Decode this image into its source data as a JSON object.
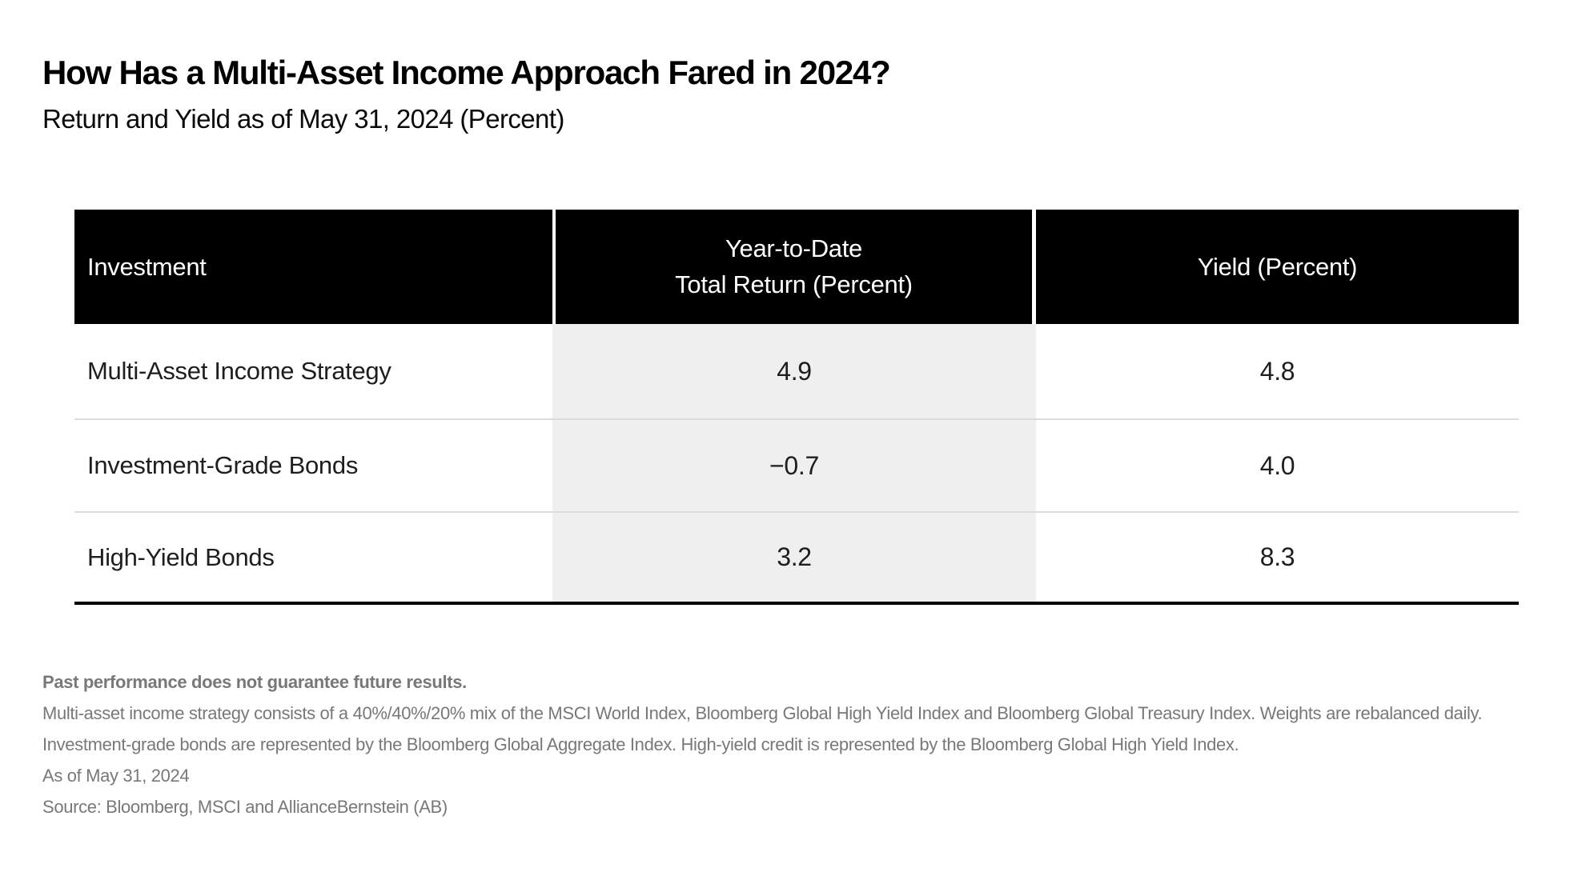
{
  "page": {
    "title": "How Has a Multi-Asset Income Approach Fared in 2024?",
    "subtitle": "Return and Yield as of May 31, 2024 (Percent)"
  },
  "table": {
    "columns": [
      {
        "label": "Investment"
      },
      {
        "label": "Year-to-Date\nTotal Return (Percent)"
      },
      {
        "label": "Yield (Percent)"
      }
    ],
    "rows": [
      {
        "cells": [
          "Multi-Asset Income Strategy",
          "4.9",
          "4.8"
        ]
      },
      {
        "cells": [
          "Investment-Grade Bonds",
          "−0.7",
          "4.0"
        ]
      },
      {
        "cells": [
          "High-Yield Bonds",
          "3.2",
          "8.3"
        ]
      }
    ]
  },
  "footnotes": {
    "disclaimer": "Past performance does not guarantee future results.",
    "note1": "Multi-asset income strategy consists of a 40%/40%/20% mix of the MSCI World Index, Bloomberg Global High Yield Index and Bloomberg Global Treasury Index. Weights are rebalanced daily.",
    "note2": "Investment-grade bonds are represented by the Bloomberg Global Aggregate Index. High-yield credit is represented by the Bloomberg Global High Yield Index.",
    "as_of": "As of May 31, 2024",
    "source": "Source: Bloomberg, MSCI and AllianceBernstein (AB)"
  },
  "colors": {
    "header_bg": "#000000",
    "header_text": "#ffffff",
    "shaded_column_bg": "#efefef",
    "row_divider": "#dcdcdc",
    "table_bottom_border": "#000000",
    "footnote_text": "#787878"
  },
  "chart_data": {
    "type": "table",
    "title": "How Has a Multi-Asset Income Approach Fared in 2024?",
    "subtitle": "Return and Yield as of May 31, 2024 (Percent)",
    "columns": [
      "Investment",
      "Year-to-Date Total Return (Percent)",
      "Yield (Percent)"
    ],
    "rows": [
      [
        "Multi-Asset Income Strategy",
        4.9,
        4.8
      ],
      [
        "Investment-Grade Bonds",
        -0.7,
        4.0
      ],
      [
        "High-Yield Bonds",
        3.2,
        8.3
      ]
    ]
  }
}
